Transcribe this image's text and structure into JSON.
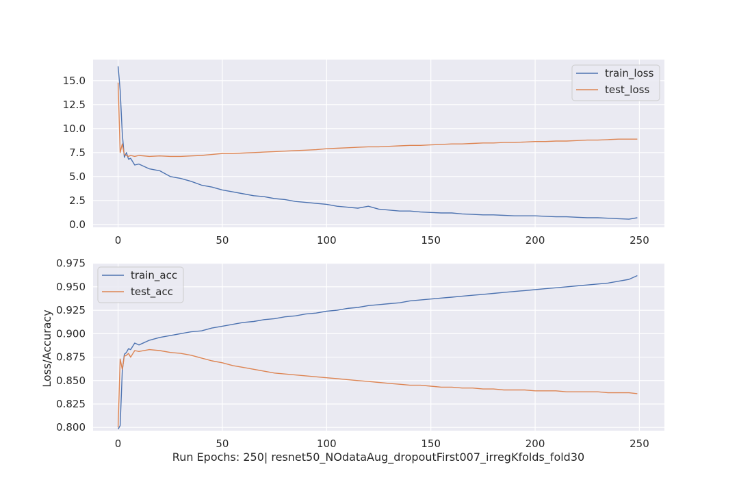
{
  "colors": {
    "train": "#4c72b0",
    "test": "#dd8452",
    "axes_bg": "#eaeaf2",
    "grid": "#ffffff"
  },
  "figure": {
    "xlabel": "Run Epochs: 250| resnet50_NOdataAug_dropoutFirst007_irregKfolds_fold30",
    "ylabel": "Loss/Accuracy"
  },
  "chart_data": [
    {
      "type": "line",
      "title": "",
      "xlim": [
        -12,
        262
      ],
      "ylim": [
        -0.3,
        17.2
      ],
      "xticks": [
        0,
        50,
        100,
        150,
        200,
        250
      ],
      "yticks": [
        0.0,
        2.5,
        5.0,
        7.5,
        10.0,
        12.5,
        15.0
      ],
      "ytick_labels": [
        "0.0",
        "2.5",
        "5.0",
        "7.5",
        "10.0",
        "12.5",
        "15.0"
      ],
      "grid": true,
      "legend_position": "upper right",
      "series": [
        {
          "name": "train_loss",
          "color_key": "train",
          "x": [
            0,
            1,
            2,
            3,
            4,
            5,
            6,
            8,
            10,
            15,
            20,
            25,
            30,
            35,
            40,
            45,
            50,
            55,
            60,
            65,
            70,
            75,
            80,
            85,
            90,
            95,
            100,
            105,
            110,
            115,
            120,
            125,
            130,
            135,
            140,
            145,
            150,
            155,
            160,
            165,
            170,
            175,
            180,
            185,
            190,
            195,
            200,
            205,
            210,
            215,
            220,
            225,
            230,
            235,
            240,
            245,
            249
          ],
          "y": [
            16.5,
            14.0,
            9.5,
            7.0,
            7.5,
            6.8,
            6.9,
            6.2,
            6.3,
            5.8,
            5.6,
            5.0,
            4.8,
            4.5,
            4.1,
            3.9,
            3.6,
            3.4,
            3.2,
            3.0,
            2.9,
            2.7,
            2.6,
            2.4,
            2.3,
            2.2,
            2.1,
            1.9,
            1.8,
            1.7,
            1.9,
            1.6,
            1.5,
            1.4,
            1.4,
            1.3,
            1.25,
            1.2,
            1.2,
            1.1,
            1.05,
            1.0,
            1.0,
            0.95,
            0.9,
            0.9,
            0.9,
            0.85,
            0.8,
            0.8,
            0.75,
            0.7,
            0.7,
            0.65,
            0.6,
            0.55,
            0.7
          ]
        },
        {
          "name": "test_loss",
          "color_key": "test",
          "x": [
            0,
            1,
            2,
            3,
            4,
            5,
            6,
            8,
            10,
            15,
            20,
            25,
            30,
            35,
            40,
            45,
            50,
            55,
            60,
            65,
            70,
            75,
            80,
            85,
            90,
            95,
            100,
            105,
            110,
            115,
            120,
            125,
            130,
            135,
            140,
            145,
            150,
            155,
            160,
            165,
            170,
            175,
            180,
            185,
            190,
            195,
            200,
            205,
            210,
            215,
            220,
            225,
            230,
            235,
            240,
            245,
            249
          ],
          "y": [
            14.8,
            7.5,
            8.4,
            7.3,
            7.2,
            7.1,
            7.2,
            7.1,
            7.2,
            7.1,
            7.15,
            7.1,
            7.1,
            7.15,
            7.2,
            7.3,
            7.4,
            7.4,
            7.45,
            7.5,
            7.55,
            7.6,
            7.65,
            7.7,
            7.75,
            7.8,
            7.9,
            7.95,
            8.0,
            8.05,
            8.1,
            8.1,
            8.15,
            8.2,
            8.25,
            8.25,
            8.3,
            8.35,
            8.4,
            8.4,
            8.45,
            8.5,
            8.5,
            8.55,
            8.55,
            8.6,
            8.65,
            8.65,
            8.7,
            8.7,
            8.75,
            8.8,
            8.8,
            8.85,
            8.9,
            8.9,
            8.9
          ]
        }
      ]
    },
    {
      "type": "line",
      "title": "",
      "xlim": [
        -12,
        262
      ],
      "ylim": [
        0.7965,
        0.9755
      ],
      "xticks": [
        0,
        50,
        100,
        150,
        200,
        250
      ],
      "yticks": [
        0.8,
        0.825,
        0.85,
        0.875,
        0.9,
        0.925,
        0.95,
        0.975
      ],
      "ytick_labels": [
        "0.800",
        "0.825",
        "0.850",
        "0.875",
        "0.900",
        "0.925",
        "0.950",
        "0.975"
      ],
      "grid": true,
      "legend_position": "upper left",
      "series": [
        {
          "name": "train_acc",
          "color_key": "train",
          "x": [
            0,
            1,
            2,
            3,
            4,
            5,
            6,
            8,
            10,
            15,
            20,
            25,
            30,
            35,
            40,
            45,
            50,
            55,
            60,
            65,
            70,
            75,
            80,
            85,
            90,
            95,
            100,
            105,
            110,
            115,
            120,
            125,
            130,
            135,
            140,
            145,
            150,
            155,
            160,
            165,
            170,
            175,
            180,
            185,
            190,
            195,
            200,
            205,
            210,
            215,
            220,
            225,
            230,
            235,
            240,
            245,
            249
          ],
          "y": [
            0.798,
            0.802,
            0.86,
            0.878,
            0.88,
            0.884,
            0.883,
            0.89,
            0.888,
            0.893,
            0.896,
            0.898,
            0.9,
            0.902,
            0.903,
            0.906,
            0.908,
            0.91,
            0.912,
            0.913,
            0.915,
            0.916,
            0.918,
            0.919,
            0.921,
            0.922,
            0.924,
            0.925,
            0.927,
            0.928,
            0.93,
            0.931,
            0.932,
            0.933,
            0.935,
            0.936,
            0.937,
            0.938,
            0.939,
            0.94,
            0.941,
            0.942,
            0.943,
            0.944,
            0.945,
            0.946,
            0.947,
            0.948,
            0.949,
            0.95,
            0.951,
            0.952,
            0.953,
            0.954,
            0.956,
            0.958,
            0.962
          ]
        },
        {
          "name": "test_acc",
          "color_key": "test",
          "x": [
            0,
            1,
            2,
            3,
            4,
            5,
            6,
            8,
            10,
            15,
            20,
            25,
            30,
            35,
            40,
            45,
            50,
            55,
            60,
            65,
            70,
            75,
            80,
            85,
            90,
            95,
            100,
            105,
            110,
            115,
            120,
            125,
            130,
            135,
            140,
            145,
            150,
            155,
            160,
            165,
            170,
            175,
            180,
            185,
            190,
            195,
            200,
            205,
            210,
            215,
            220,
            225,
            230,
            235,
            240,
            245,
            249
          ],
          "y": [
            0.8,
            0.873,
            0.862,
            0.876,
            0.877,
            0.879,
            0.875,
            0.882,
            0.881,
            0.883,
            0.882,
            0.88,
            0.879,
            0.877,
            0.874,
            0.871,
            0.869,
            0.866,
            0.864,
            0.862,
            0.86,
            0.858,
            0.857,
            0.856,
            0.855,
            0.854,
            0.853,
            0.852,
            0.851,
            0.85,
            0.849,
            0.848,
            0.847,
            0.846,
            0.845,
            0.845,
            0.844,
            0.843,
            0.843,
            0.842,
            0.842,
            0.841,
            0.841,
            0.84,
            0.84,
            0.84,
            0.839,
            0.839,
            0.839,
            0.838,
            0.838,
            0.838,
            0.838,
            0.837,
            0.837,
            0.837,
            0.836
          ]
        }
      ]
    }
  ]
}
